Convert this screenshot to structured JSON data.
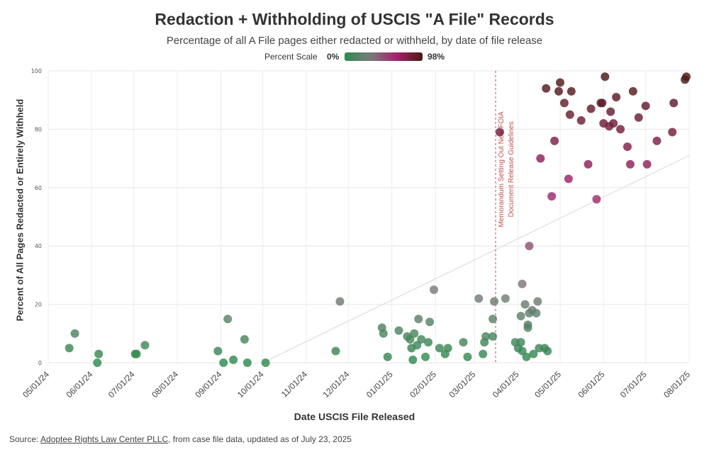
{
  "chart_data": {
    "type": "scatter",
    "title": "Redaction + Withholding of USCIS \"A File\" Records",
    "subtitle": "Percentage of all A File pages either redacted or withheld, by date of file release",
    "legend": {
      "label": "Percent Scale",
      "min_label": "0%",
      "max_label": "98%",
      "colors": [
        "#2e8b4e",
        "#7a7a7a",
        "#a3226e",
        "#4a1a12"
      ]
    },
    "xlabel": "Date USCIS File Released",
    "ylabel": "Percent of All Pages Redacted or Entirely Withheld",
    "x_ticks": [
      "05/01/24",
      "06/01/24",
      "07/01/24",
      "08/01/24",
      "09/01/24",
      "10/01/24",
      "11/01/24",
      "12/01/24",
      "01/01/25",
      "02/01/25",
      "03/01/25",
      "04/01/25",
      "05/01/25",
      "06/01/25",
      "07/01/25",
      "08/01/25"
    ],
    "y_ticks": [
      0,
      20,
      40,
      60,
      80,
      100
    ],
    "ylim": [
      0,
      100
    ],
    "xlim": [
      "2024-05-01",
      "2025-08-01"
    ],
    "grid": true,
    "annotation": {
      "date": "2025-03-16",
      "lines": [
        "Memorandum Setting Out New FOIA",
        "Document Release Guidelines"
      ]
    },
    "trendline": {
      "start": [
        "2024-10-01",
        0
      ],
      "end": [
        "2025-08-01",
        71
      ]
    },
    "points": [
      {
        "x": "2024-05-16",
        "y": 5
      },
      {
        "x": "2024-05-20",
        "y": 10
      },
      {
        "x": "2024-06-05",
        "y": 0
      },
      {
        "x": "2024-06-06",
        "y": 3
      },
      {
        "x": "2024-07-02",
        "y": 3
      },
      {
        "x": "2024-07-03",
        "y": 3
      },
      {
        "x": "2024-07-09",
        "y": 6
      },
      {
        "x": "2024-08-30",
        "y": 4
      },
      {
        "x": "2024-09-03",
        "y": 0
      },
      {
        "x": "2024-09-06",
        "y": 15
      },
      {
        "x": "2024-09-10",
        "y": 1
      },
      {
        "x": "2024-09-18",
        "y": 8
      },
      {
        "x": "2024-09-20",
        "y": 0
      },
      {
        "x": "2024-10-03",
        "y": 0
      },
      {
        "x": "2024-11-22",
        "y": 4
      },
      {
        "x": "2024-11-25",
        "y": 21
      },
      {
        "x": "2024-12-25",
        "y": 12
      },
      {
        "x": "2024-12-26",
        "y": 10
      },
      {
        "x": "2024-12-29",
        "y": 2
      },
      {
        "x": "2025-01-06",
        "y": 11
      },
      {
        "x": "2025-01-12",
        "y": 9
      },
      {
        "x": "2025-01-14",
        "y": 8
      },
      {
        "x": "2025-01-15",
        "y": 5
      },
      {
        "x": "2025-01-16",
        "y": 1
      },
      {
        "x": "2025-01-17",
        "y": 10
      },
      {
        "x": "2025-01-19",
        "y": 6
      },
      {
        "x": "2025-01-20",
        "y": 15
      },
      {
        "x": "2025-01-22",
        "y": 8
      },
      {
        "x": "2025-01-25",
        "y": 2
      },
      {
        "x": "2025-01-27",
        "y": 7
      },
      {
        "x": "2025-01-28",
        "y": 14
      },
      {
        "x": "2025-01-31",
        "y": 25
      },
      {
        "x": "2025-02-04",
        "y": 5
      },
      {
        "x": "2025-02-08",
        "y": 3
      },
      {
        "x": "2025-02-10",
        "y": 5
      },
      {
        "x": "2025-02-21",
        "y": 7
      },
      {
        "x": "2025-02-24",
        "y": 2
      },
      {
        "x": "2025-03-04",
        "y": 22
      },
      {
        "x": "2025-03-07",
        "y": 3
      },
      {
        "x": "2025-03-08",
        "y": 7
      },
      {
        "x": "2025-03-09",
        "y": 9
      },
      {
        "x": "2025-03-14",
        "y": 9
      },
      {
        "x": "2025-03-14",
        "y": 15
      },
      {
        "x": "2025-03-15",
        "y": 21
      },
      {
        "x": "2025-03-19",
        "y": 79
      },
      {
        "x": "2025-03-23",
        "y": 22
      },
      {
        "x": "2025-03-30",
        "y": 7
      },
      {
        "x": "2025-04-01",
        "y": 5
      },
      {
        "x": "2025-04-03",
        "y": 7
      },
      {
        "x": "2025-04-03",
        "y": 16
      },
      {
        "x": "2025-04-04",
        "y": 4
      },
      {
        "x": "2025-04-04",
        "y": 27
      },
      {
        "x": "2025-04-06",
        "y": 20
      },
      {
        "x": "2025-04-07",
        "y": 2
      },
      {
        "x": "2025-04-08",
        "y": 13
      },
      {
        "x": "2025-04-08",
        "y": 12
      },
      {
        "x": "2025-04-09",
        "y": 40
      },
      {
        "x": "2025-04-09",
        "y": 17
      },
      {
        "x": "2025-04-11",
        "y": 18
      },
      {
        "x": "2025-04-12",
        "y": 3
      },
      {
        "x": "2025-04-14",
        "y": 17
      },
      {
        "x": "2025-04-15",
        "y": 21
      },
      {
        "x": "2025-04-16",
        "y": 5
      },
      {
        "x": "2025-04-20",
        "y": 5
      },
      {
        "x": "2025-04-22",
        "y": 4
      },
      {
        "x": "2025-04-17",
        "y": 70
      },
      {
        "x": "2025-04-21",
        "y": 94
      },
      {
        "x": "2025-04-25",
        "y": 57
      },
      {
        "x": "2025-04-27",
        "y": 76
      },
      {
        "x": "2025-04-30",
        "y": 93
      },
      {
        "x": "2025-05-01",
        "y": 96
      },
      {
        "x": "2025-05-04",
        "y": 89
      },
      {
        "x": "2025-05-07",
        "y": 63
      },
      {
        "x": "2025-05-08",
        "y": 85
      },
      {
        "x": "2025-05-09",
        "y": 93
      },
      {
        "x": "2025-05-16",
        "y": 83
      },
      {
        "x": "2025-05-21",
        "y": 68
      },
      {
        "x": "2025-05-23",
        "y": 87
      },
      {
        "x": "2025-05-27",
        "y": 56
      },
      {
        "x": "2025-05-30",
        "y": 89
      },
      {
        "x": "2025-05-31",
        "y": 89
      },
      {
        "x": "2025-06-01",
        "y": 82
      },
      {
        "x": "2025-06-02",
        "y": 98
      },
      {
        "x": "2025-06-05",
        "y": 81
      },
      {
        "x": "2025-06-06",
        "y": 86
      },
      {
        "x": "2025-06-08",
        "y": 82
      },
      {
        "x": "2025-06-10",
        "y": 91
      },
      {
        "x": "2025-06-13",
        "y": 80
      },
      {
        "x": "2025-06-18",
        "y": 74
      },
      {
        "x": "2025-06-20",
        "y": 68
      },
      {
        "x": "2025-06-22",
        "y": 93
      },
      {
        "x": "2025-06-26",
        "y": 84
      },
      {
        "x": "2025-07-01",
        "y": 88
      },
      {
        "x": "2025-07-02",
        "y": 68
      },
      {
        "x": "2025-07-09",
        "y": 76
      },
      {
        "x": "2025-07-20",
        "y": 79
      },
      {
        "x": "2025-07-21",
        "y": 89
      },
      {
        "x": "2025-07-29",
        "y": 97
      },
      {
        "x": "2025-07-30",
        "y": 98
      }
    ]
  },
  "source": {
    "prefix": "Source: ",
    "link": "Adoptee Rights Law Center PLLC",
    "suffix": ", from case file data, updated as of July 23, 2025"
  }
}
